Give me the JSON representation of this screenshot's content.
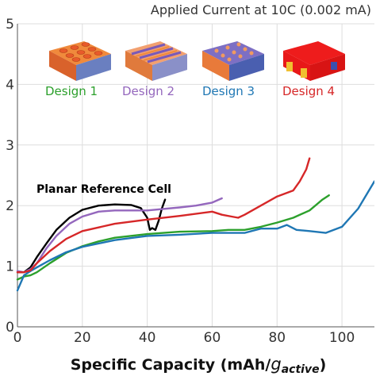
{
  "chart_data": {
    "type": "line",
    "title": "Applied Current at 10C (0.002 mA)",
    "xlabel": "Specific Capacity (mAh/",
    "xlabel_sub": "active",
    "xlabel_var": "g",
    "xlabel_close": ")",
    "ylabel": "",
    "xlim": [
      0,
      110
    ],
    "ylim": [
      0,
      5
    ],
    "xticks": [
      "0",
      "20",
      "40",
      "60",
      "80",
      "100"
    ],
    "yticks": [
      "0",
      "1",
      "2",
      "3",
      "4",
      "5"
    ],
    "grid": true,
    "annotation": "Planar Reference Cell",
    "series": [
      {
        "name": "Planar Reference Cell",
        "color": "#000000",
        "x": [
          0,
          2,
          4,
          6,
          9,
          12,
          16,
          20,
          25,
          30,
          35,
          38,
          40,
          40.8,
          41.5,
          42.5,
          43.5,
          44.5,
          45.5
        ],
        "y": [
          0.9,
          0.9,
          0.98,
          1.15,
          1.38,
          1.6,
          1.8,
          1.93,
          2.0,
          2.02,
          2.01,
          1.96,
          1.8,
          1.6,
          1.63,
          1.6,
          1.75,
          1.95,
          2.1
        ]
      },
      {
        "name": "Design 1",
        "color": "#2ca02c",
        "x": [
          0,
          2,
          4,
          6,
          10,
          15,
          20,
          25,
          30,
          40,
          50,
          60,
          65,
          70,
          75,
          80,
          85,
          90,
          94,
          96
        ],
        "y": [
          0.78,
          0.83,
          0.85,
          0.9,
          1.05,
          1.22,
          1.33,
          1.41,
          1.47,
          1.53,
          1.57,
          1.58,
          1.6,
          1.6,
          1.65,
          1.72,
          1.8,
          1.92,
          2.1,
          2.17
        ]
      },
      {
        "name": "Design 2",
        "color": "#9467bd",
        "x": [
          0,
          2,
          4,
          6,
          9,
          12,
          16,
          20,
          25,
          30,
          40,
          50,
          55,
          60,
          63
        ],
        "y": [
          0.92,
          0.9,
          0.95,
          1.05,
          1.3,
          1.5,
          1.7,
          1.82,
          1.9,
          1.92,
          1.92,
          1.97,
          2.0,
          2.05,
          2.12
        ]
      },
      {
        "name": "Design 3",
        "color": "#1f77b4",
        "x": [
          0,
          2,
          4,
          6,
          10,
          15,
          20,
          30,
          40,
          50,
          60,
          70,
          75,
          80,
          83,
          86,
          90,
          95,
          100,
          105,
          110
        ],
        "y": [
          0.6,
          0.85,
          0.92,
          0.98,
          1.1,
          1.23,
          1.32,
          1.43,
          1.5,
          1.52,
          1.55,
          1.55,
          1.62,
          1.62,
          1.68,
          1.6,
          1.58,
          1.55,
          1.65,
          1.95,
          2.4
        ]
      },
      {
        "name": "Design 4",
        "color": "#d62728",
        "x": [
          0,
          2,
          4,
          6,
          10,
          15,
          20,
          30,
          40,
          50,
          60,
          63,
          66,
          68,
          70,
          75,
          80,
          85,
          87,
          89,
          90
        ],
        "y": [
          0.9,
          0.9,
          0.93,
          1.05,
          1.25,
          1.45,
          1.58,
          1.7,
          1.77,
          1.83,
          1.9,
          1.85,
          1.82,
          1.8,
          1.85,
          2.0,
          2.15,
          2.25,
          2.4,
          2.6,
          2.78
        ]
      }
    ],
    "legend": [
      {
        "label": "Design 1",
        "color": "#2ca02c",
        "icon": "pillar-array-icon"
      },
      {
        "label": "Design 2",
        "color": "#9467bd",
        "icon": "interdigitated-plates-icon"
      },
      {
        "label": "Design 3",
        "color": "#1f77b4",
        "icon": "pore-lattice-icon"
      },
      {
        "label": "Design 4",
        "color": "#d62728",
        "icon": "layered-block-icon"
      }
    ]
  }
}
